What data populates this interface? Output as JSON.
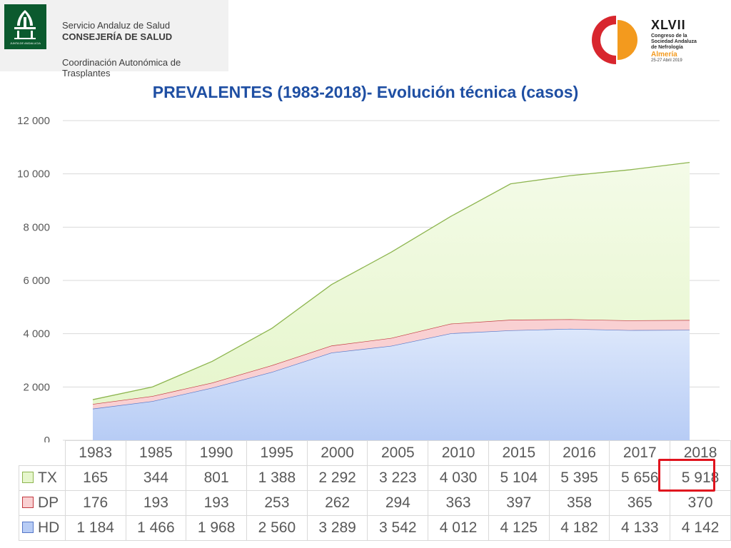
{
  "header": {
    "org_line1": "Servicio Andaluz de Salud",
    "org_line2": "CONSEJERÍA DE SALUD",
    "org_line3": "Coordinación Autonómica de Trasplantes",
    "junta_logo_text": "JUNTA DE ANDALUCIA",
    "congress": {
      "numeral": "XLVII",
      "line1": "Congreso de la",
      "line2": "Sociedad Andaluza",
      "line3": "de Nefrología",
      "city": "Almería",
      "date": "25-27 Abril 2019"
    }
  },
  "colors": {
    "title": "#1f4fa3",
    "tx_fill": "#e6f6cc",
    "tx_line": "#8db54f",
    "dp_fill": "#f9d0d2",
    "dp_line": "#c2383f",
    "hd_fill": "#b7ccf5",
    "hd_line": "#5577c8",
    "highlight": "#e0141e"
  },
  "chart_data": {
    "type": "area",
    "stacked": true,
    "title": "PREVALENTES (1983-2018)- Evolución técnica (casos)",
    "categories": [
      "1983",
      "1985",
      "1990",
      "1995",
      "2000",
      "2005",
      "2010",
      "2015",
      "2016",
      "2017",
      "2018"
    ],
    "series": [
      {
        "name": "HD",
        "values": [
          1184,
          1466,
          1968,
          2560,
          3289,
          3542,
          4012,
          4125,
          4182,
          4133,
          4142
        ]
      },
      {
        "name": "DP",
        "values": [
          176,
          193,
          193,
          253,
          262,
          294,
          363,
          397,
          358,
          365,
          370
        ]
      },
      {
        "name": "TX",
        "values": [
          165,
          344,
          801,
          1388,
          2292,
          3223,
          4030,
          5104,
          5395,
          5656,
          5918
        ]
      }
    ],
    "table_row_labels": [
      "TX",
      "DP",
      "HD"
    ],
    "table_rows": {
      "TX": [
        "165",
        "344",
        "801",
        "1 388",
        "2 292",
        "3 223",
        "4 030",
        "5 104",
        "5 395",
        "5 656",
        "5 918"
      ],
      "DP": [
        "176",
        "193",
        "193",
        "253",
        "262",
        "294",
        "363",
        "397",
        "358",
        "365",
        "370"
      ],
      "HD": [
        "1 184",
        "1 466",
        "1 968",
        "2 560",
        "3 289",
        "3 542",
        "4 012",
        "4 125",
        "4 182",
        "4 133",
        "4 142"
      ]
    },
    "yticks": [
      "0",
      "2 000",
      "4 000",
      "6 000",
      "8 000",
      "10 000",
      "12 000"
    ],
    "ylim": [
      0,
      12000
    ],
    "grid": true,
    "highlighted_cell": "TX 2018"
  }
}
